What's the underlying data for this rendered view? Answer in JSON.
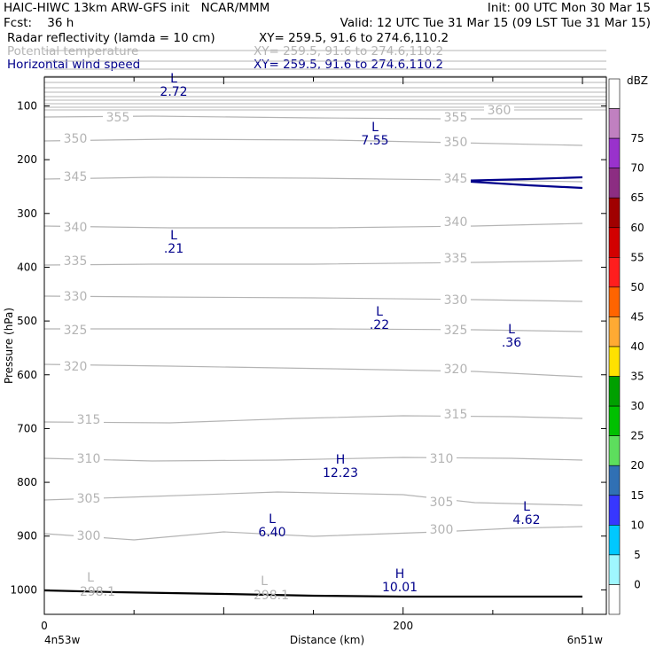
{
  "header": {
    "left1": "HAIC-HIWC 13km ARW-GFS init   NCAR/MMM",
    "right1": "Init: 00 UTC Mon 30 Mar 15",
    "left2": "Fcst:    36 h",
    "right2": "Valid: 12 UTC Tue 31 Mar 15 (09 LST Tue 31 Mar 15)",
    "fields": [
      {
        "name": "Radar reflectivity (lamda = 10 cm)",
        "xy": "XY= 259.5, 91.6 to 274.6,110.2"
      },
      {
        "name": "Potential temperature",
        "xy": "XY= 259.5, 91.6 to 274.6,110.2"
      },
      {
        "name": "Horizontal wind speed",
        "xy": "XY= 259.5, 91.6 to 274.6,110.2"
      }
    ]
  },
  "colors": {
    "wind": "#00008b",
    "theta": "#b4b4b4",
    "terrain": "#000000"
  },
  "chart_data": {
    "type": "line",
    "xlabel": "Distance (km)",
    "ylabel": "Pressure (hPa)",
    "x_tick_labels": [
      "0",
      "200"
    ],
    "x_end_labels": [
      "4n53w",
      "6n51w"
    ],
    "y_ticks": [
      100,
      200,
      300,
      400,
      500,
      600,
      700,
      800,
      900,
      1000
    ],
    "xlim": [
      0,
      300
    ],
    "ylim_pressure": [
      50,
      1050
    ],
    "colorbar": {
      "label": "dBZ",
      "ticks": [
        0,
        5,
        10,
        15,
        20,
        25,
        30,
        35,
        40,
        45,
        50,
        55,
        60,
        65,
        70,
        75
      ],
      "colors": [
        "#ffffff",
        "#9ff7ff",
        "#00c8ff",
        "#3737ff",
        "#3070b4",
        "#5dde5d",
        "#00c000",
        "#00a000",
        "#ffe100",
        "#ffaa33",
        "#ff6400",
        "#ff1e1e",
        "#d20000",
        "#a00000",
        "#8c2d82",
        "#9932cc",
        "#c080c0",
        "#ffffff"
      ]
    },
    "theta_contours": [
      {
        "value": "355",
        "points": [
          [
            0,
            132
          ],
          [
            60,
            131
          ],
          [
            150,
            133
          ],
          [
            220,
            134
          ],
          [
            300,
            134
          ]
        ]
      },
      {
        "value": "350",
        "points": [
          [
            0,
            159
          ],
          [
            70,
            157
          ],
          [
            160,
            158
          ],
          [
            230,
            161
          ],
          [
            300,
            164
          ]
        ]
      },
      {
        "value": "345",
        "points": [
          [
            0,
            202
          ],
          [
            60,
            200
          ],
          [
            150,
            201
          ],
          [
            230,
            203
          ],
          [
            300,
            205
          ]
        ]
      },
      {
        "value": "340",
        "points": [
          [
            0,
            255
          ],
          [
            70,
            257
          ],
          [
            160,
            257
          ],
          [
            240,
            255
          ],
          [
            300,
            252
          ]
        ]
      },
      {
        "value": "335",
        "points": [
          [
            0,
            299
          ],
          [
            60,
            298
          ],
          [
            150,
            298
          ],
          [
            240,
            296
          ],
          [
            300,
            294
          ]
        ]
      },
      {
        "value": "330",
        "points": [
          [
            0,
            334
          ],
          [
            60,
            335
          ],
          [
            150,
            336
          ],
          [
            240,
            338
          ],
          [
            300,
            340
          ]
        ]
      },
      {
        "value": "325",
        "points": [
          [
            0,
            371
          ],
          [
            60,
            371
          ],
          [
            160,
            371
          ],
          [
            240,
            372
          ],
          [
            300,
            374
          ]
        ]
      },
      {
        "value": "320",
        "points": [
          [
            0,
            411
          ],
          [
            70,
            413
          ],
          [
            160,
            416
          ],
          [
            240,
            419
          ],
          [
            300,
            425
          ]
        ]
      },
      {
        "value": "315",
        "points": [
          [
            0,
            476
          ],
          [
            70,
            477
          ],
          [
            140,
            472
          ],
          [
            200,
            469
          ],
          [
            260,
            470
          ],
          [
            300,
            472
          ]
        ]
      },
      {
        "value": "310",
        "points": [
          [
            0,
            517
          ],
          [
            60,
            520
          ],
          [
            130,
            519
          ],
          [
            200,
            516
          ],
          [
            260,
            517
          ],
          [
            300,
            519
          ]
        ]
      },
      {
        "value": "305",
        "points": [
          [
            0,
            564
          ],
          [
            60,
            560
          ],
          [
            130,
            555
          ],
          [
            200,
            558
          ],
          [
            240,
            567
          ],
          [
            300,
            570
          ]
        ]
      },
      {
        "value": "300",
        "points": [
          [
            0,
            602
          ],
          [
            50,
            609
          ],
          [
            100,
            600
          ],
          [
            150,
            605
          ],
          [
            220,
            600
          ],
          [
            260,
            596
          ],
          [
            300,
            594
          ]
        ]
      }
    ],
    "theta_labels_extra": [
      "360",
      "298.1",
      "298.1"
    ],
    "upper_theta_lines": [
      57,
      69,
      78,
      86,
      93,
      99,
      104,
      109,
      113,
      117,
      121,
      124
    ],
    "wind_jet": {
      "points_top": [
        [
          230,
          204
        ],
        [
          270,
          202
        ],
        [
          300,
          200
        ]
      ],
      "points_bottom": [
        [
          230,
          204
        ],
        [
          270,
          209
        ],
        [
          300,
          212
        ]
      ]
    },
    "terrain": {
      "points": [
        [
          0,
          666
        ],
        [
          40,
          668
        ],
        [
          100,
          670
        ],
        [
          150,
          672
        ],
        [
          200,
          673
        ],
        [
          250,
          673
        ],
        [
          300,
          673
        ]
      ]
    },
    "wind_extrema": [
      {
        "type": "L",
        "value": "2.72"
      },
      {
        "type": "L",
        "value": "7.55"
      },
      {
        "type": "L",
        "value": ".21"
      },
      {
        "type": "L",
        "value": ".22"
      },
      {
        "type": "L",
        "value": ".36"
      },
      {
        "type": "H",
        "value": "12.23"
      },
      {
        "type": "L",
        "value": "6.40"
      },
      {
        "type": "L",
        "value": "4.62"
      },
      {
        "type": "H",
        "value": "10.01"
      }
    ],
    "theta_extrema": [
      {
        "type": "L",
        "value": "298.1"
      },
      {
        "type": "L",
        "value": "298.1"
      }
    ]
  }
}
